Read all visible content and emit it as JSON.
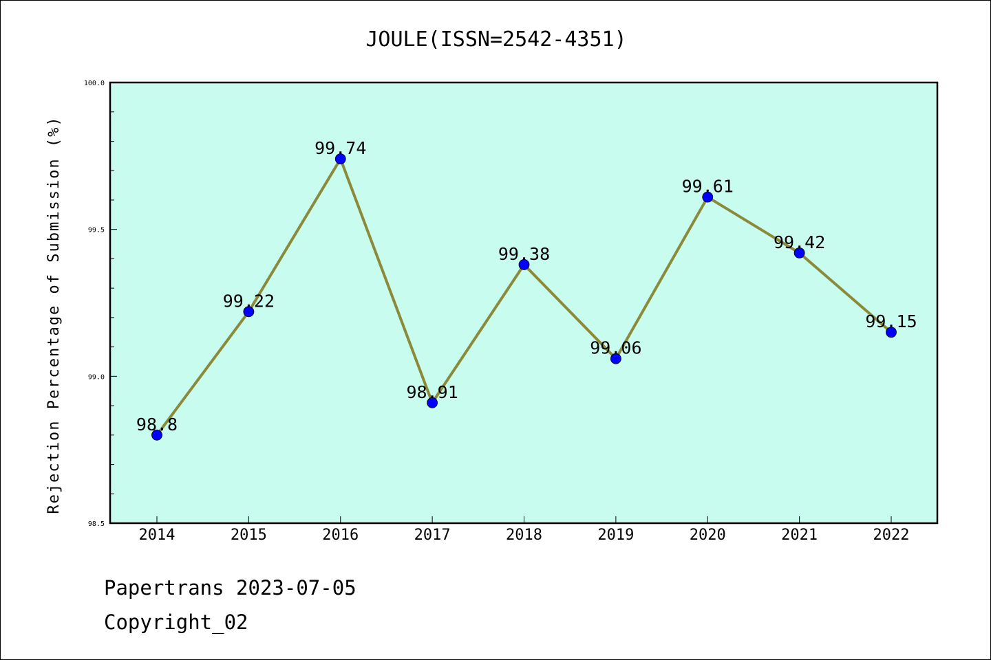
{
  "chart_data": {
    "type": "line",
    "title": "JOULE(ISSN=2542-4351)",
    "xlabel": "",
    "ylabel": "Rejection Percentage of Submission (%)",
    "categories": [
      "2014",
      "2015",
      "2016",
      "2017",
      "2018",
      "2019",
      "2020",
      "2021",
      "2022"
    ],
    "series": [
      {
        "values": [
          98.8,
          99.22,
          99.74,
          98.91,
          99.38,
          99.06,
          99.61,
          99.42,
          99.15
        ],
        "data_labels": [
          "98.8",
          "99.22",
          "99.74",
          "98.91",
          "99.38",
          "99.06",
          "99.61",
          "99.42",
          "99.15"
        ]
      }
    ],
    "ylim": [
      98.5,
      100.0
    ],
    "yticks": [
      "98.5",
      "99.0",
      "99.5",
      "100.0"
    ],
    "grid": false,
    "colors": {
      "plot_background": "#c8fcee",
      "line": "#8a8a3a",
      "marker": "#0000ff"
    }
  },
  "footer": {
    "line1": "Papertrans 2023-07-05",
    "line2": "Copyright_02"
  }
}
